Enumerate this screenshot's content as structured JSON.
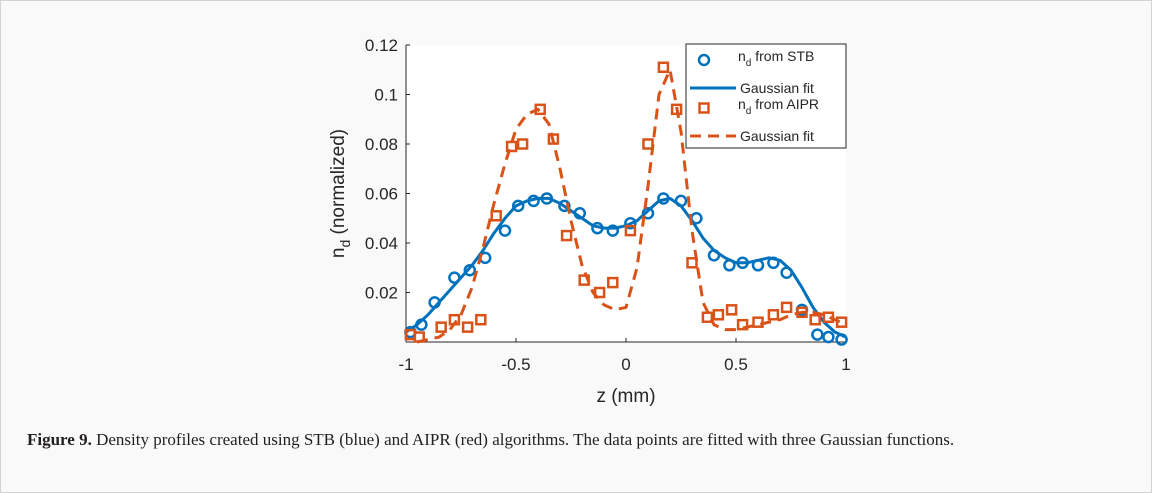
{
  "chart_data": {
    "type": "scatter",
    "xlabel": "z (mm)",
    "ylabel_main": "n",
    "ylabel_sub": "d",
    "ylabel_rest": " (normalized)",
    "xlim": [
      -1,
      1
    ],
    "ylim": [
      0,
      0.12
    ],
    "xticks": [
      -1,
      -0.5,
      0,
      0.5,
      1
    ],
    "yticks": [
      0.02,
      0.04,
      0.06,
      0.08,
      0.1,
      0.12
    ],
    "xtick_labels": [
      "-1",
      "-0.5",
      "0",
      "0.5",
      "1"
    ],
    "ytick_labels": [
      "0.02",
      "0.04",
      "0.06",
      "0.08",
      "0.1",
      "0.12"
    ],
    "legend_position": "top-right",
    "series": [
      {
        "name_main": "n",
        "name_sub": "d",
        "name_rest": " from STB",
        "marker": "circle",
        "color": "#0072bd",
        "x": [
          -0.98,
          -0.93,
          -0.87,
          -0.78,
          -0.71,
          -0.64,
          -0.55,
          -0.49,
          -0.42,
          -0.36,
          -0.28,
          -0.21,
          -0.13,
          -0.06,
          0.02,
          0.1,
          0.17,
          0.25,
          0.32,
          0.4,
          0.47,
          0.53,
          0.6,
          0.67,
          0.73,
          0.8,
          0.87,
          0.92,
          0.98
        ],
        "y": [
          0.004,
          0.007,
          0.016,
          0.026,
          0.029,
          0.034,
          0.045,
          0.055,
          0.057,
          0.058,
          0.055,
          0.052,
          0.046,
          0.045,
          0.048,
          0.052,
          0.058,
          0.057,
          0.05,
          0.035,
          0.031,
          0.032,
          0.031,
          0.032,
          0.028,
          0.013,
          0.003,
          0.002,
          0.001
        ]
      },
      {
        "name": "Gaussian fit",
        "line": "solid",
        "color": "#0072bd",
        "x": [
          -1,
          -0.95,
          -0.9,
          -0.85,
          -0.8,
          -0.75,
          -0.7,
          -0.65,
          -0.6,
          -0.55,
          -0.5,
          -0.45,
          -0.4,
          -0.35,
          -0.3,
          -0.25,
          -0.2,
          -0.15,
          -0.1,
          -0.05,
          0,
          0.05,
          0.1,
          0.15,
          0.2,
          0.25,
          0.3,
          0.35,
          0.4,
          0.45,
          0.5,
          0.55,
          0.6,
          0.65,
          0.7,
          0.75,
          0.8,
          0.85,
          0.9,
          0.95,
          1
        ],
        "y": [
          0.004,
          0.007,
          0.011,
          0.016,
          0.021,
          0.026,
          0.031,
          0.037,
          0.044,
          0.05,
          0.055,
          0.057,
          0.058,
          0.058,
          0.056,
          0.053,
          0.05,
          0.047,
          0.046,
          0.046,
          0.047,
          0.049,
          0.053,
          0.057,
          0.058,
          0.055,
          0.049,
          0.042,
          0.037,
          0.034,
          0.032,
          0.032,
          0.033,
          0.034,
          0.033,
          0.029,
          0.022,
          0.014,
          0.008,
          0.004,
          0.002
        ]
      },
      {
        "name_main": "n",
        "name_sub": "d",
        "name_rest": " from AIPR",
        "marker": "square",
        "color": "#d95319",
        "x": [
          -0.98,
          -0.94,
          -0.84,
          -0.78,
          -0.72,
          -0.66,
          -0.59,
          -0.52,
          -0.47,
          -0.39,
          -0.33,
          -0.27,
          -0.19,
          -0.12,
          -0.06,
          0.02,
          0.1,
          0.17,
          0.23,
          0.3,
          0.37,
          0.42,
          0.48,
          0.53,
          0.6,
          0.67,
          0.73,
          0.8,
          0.86,
          0.92,
          0.98
        ],
        "y": [
          0.003,
          0.002,
          0.006,
          0.009,
          0.006,
          0.009,
          0.051,
          0.079,
          0.08,
          0.094,
          0.082,
          0.043,
          0.025,
          0.02,
          0.024,
          0.045,
          0.08,
          0.111,
          0.094,
          0.032,
          0.01,
          0.011,
          0.013,
          0.007,
          0.008,
          0.011,
          0.014,
          0.012,
          0.009,
          0.01,
          0.008
        ]
      },
      {
        "name": "Gaussian fit",
        "line": "dashed",
        "color": "#d95319",
        "x": [
          -0.95,
          -0.9,
          -0.85,
          -0.8,
          -0.75,
          -0.7,
          -0.65,
          -0.6,
          -0.55,
          -0.5,
          -0.45,
          -0.4,
          -0.35,
          -0.3,
          -0.25,
          -0.2,
          -0.15,
          -0.1,
          -0.05,
          0,
          0.05,
          0.1,
          0.15,
          0.2,
          0.25,
          0.3,
          0.35,
          0.4,
          0.45,
          0.5,
          0.55,
          0.6,
          0.65,
          0.7,
          0.75,
          0.8,
          0.85,
          0.9,
          0.95,
          1
        ],
        "y": [
          0.0,
          0.001,
          0.002,
          0.005,
          0.011,
          0.022,
          0.038,
          0.056,
          0.072,
          0.086,
          0.092,
          0.094,
          0.088,
          0.07,
          0.049,
          0.031,
          0.02,
          0.015,
          0.013,
          0.014,
          0.03,
          0.063,
          0.1,
          0.11,
          0.085,
          0.045,
          0.016,
          0.007,
          0.005,
          0.005,
          0.006,
          0.007,
          0.008,
          0.009,
          0.011,
          0.012,
          0.012,
          0.011,
          0.009,
          0.007
        ]
      }
    ]
  },
  "caption": {
    "label": "Figure 9.",
    "text": " Density profiles created using STB (blue) and AIPR (red) algorithms. The data points are fitted with three Gaussian functions."
  }
}
